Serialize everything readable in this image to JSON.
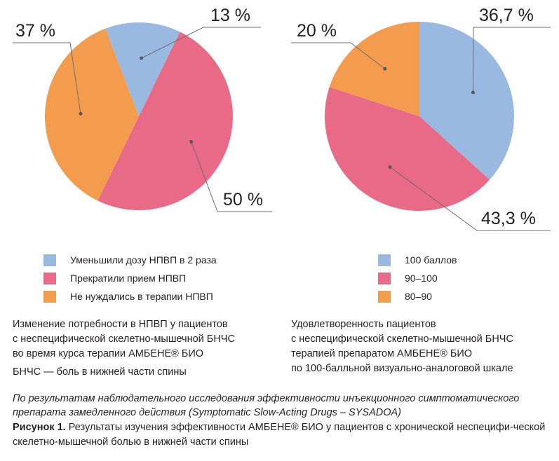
{
  "colors": {
    "blue": "#9ab9e1",
    "pink": "#e96a86",
    "orange": "#f39c4d"
  },
  "chart_data": [
    {
      "type": "pie",
      "slices": [
        {
          "label": "Уменьшили дозу НПВП в 2 раза",
          "value": 13,
          "color": "#9ab9e1",
          "value_label": "13 %"
        },
        {
          "label": "Прекратили прием НПВП",
          "value": 50,
          "color": "#e96a86",
          "value_label": "50 %"
        },
        {
          "label": "Не нуждались в терапии НПВП",
          "value": 37,
          "color": "#f39c4d",
          "value_label": "37 %"
        }
      ],
      "legend_placement": "bottom",
      "caption_lines": [
        "Изменение потребности в НПВП у пациентов",
        "с неспецифической скелетно-мышечной БНЧС",
        "во время курса терапии АМБЕНЕ® БИО",
        "БНЧС — боль в нижней части спины"
      ]
    },
    {
      "type": "pie",
      "slices": [
        {
          "label": "100 баллов",
          "value": 36.7,
          "color": "#9ab9e1",
          "value_label": "36,7 %"
        },
        {
          "label": "90–100",
          "value": 43.3,
          "color": "#e96a86",
          "value_label": "43,3 %"
        },
        {
          "label": "80–90",
          "value": 20,
          "color": "#f39c4d",
          "value_label": "20 %"
        }
      ],
      "legend_placement": "bottom",
      "caption_lines": [
        "Удовлетворенность пациентов",
        "с неспецифической скелетно-мышечной БНЧС",
        "терапией препаратом АМБЕНЕ® БИО",
        "по 100-балльной визуально-аналоговой шкале"
      ]
    }
  ],
  "note": "По результатам наблюдательного исследования эффективности инъекционного симптоматического препарата замедленного действия (Symptomatic Slow-Acting Drugs – SYSADOA)",
  "figure_label": "Рисунок 1.",
  "figure_text": "Результаты изучения эффективности АМБЕНЕ® БИО у пациентов с хронической неспецифи-ческой скелетно-мышечной болью в нижней части спины"
}
